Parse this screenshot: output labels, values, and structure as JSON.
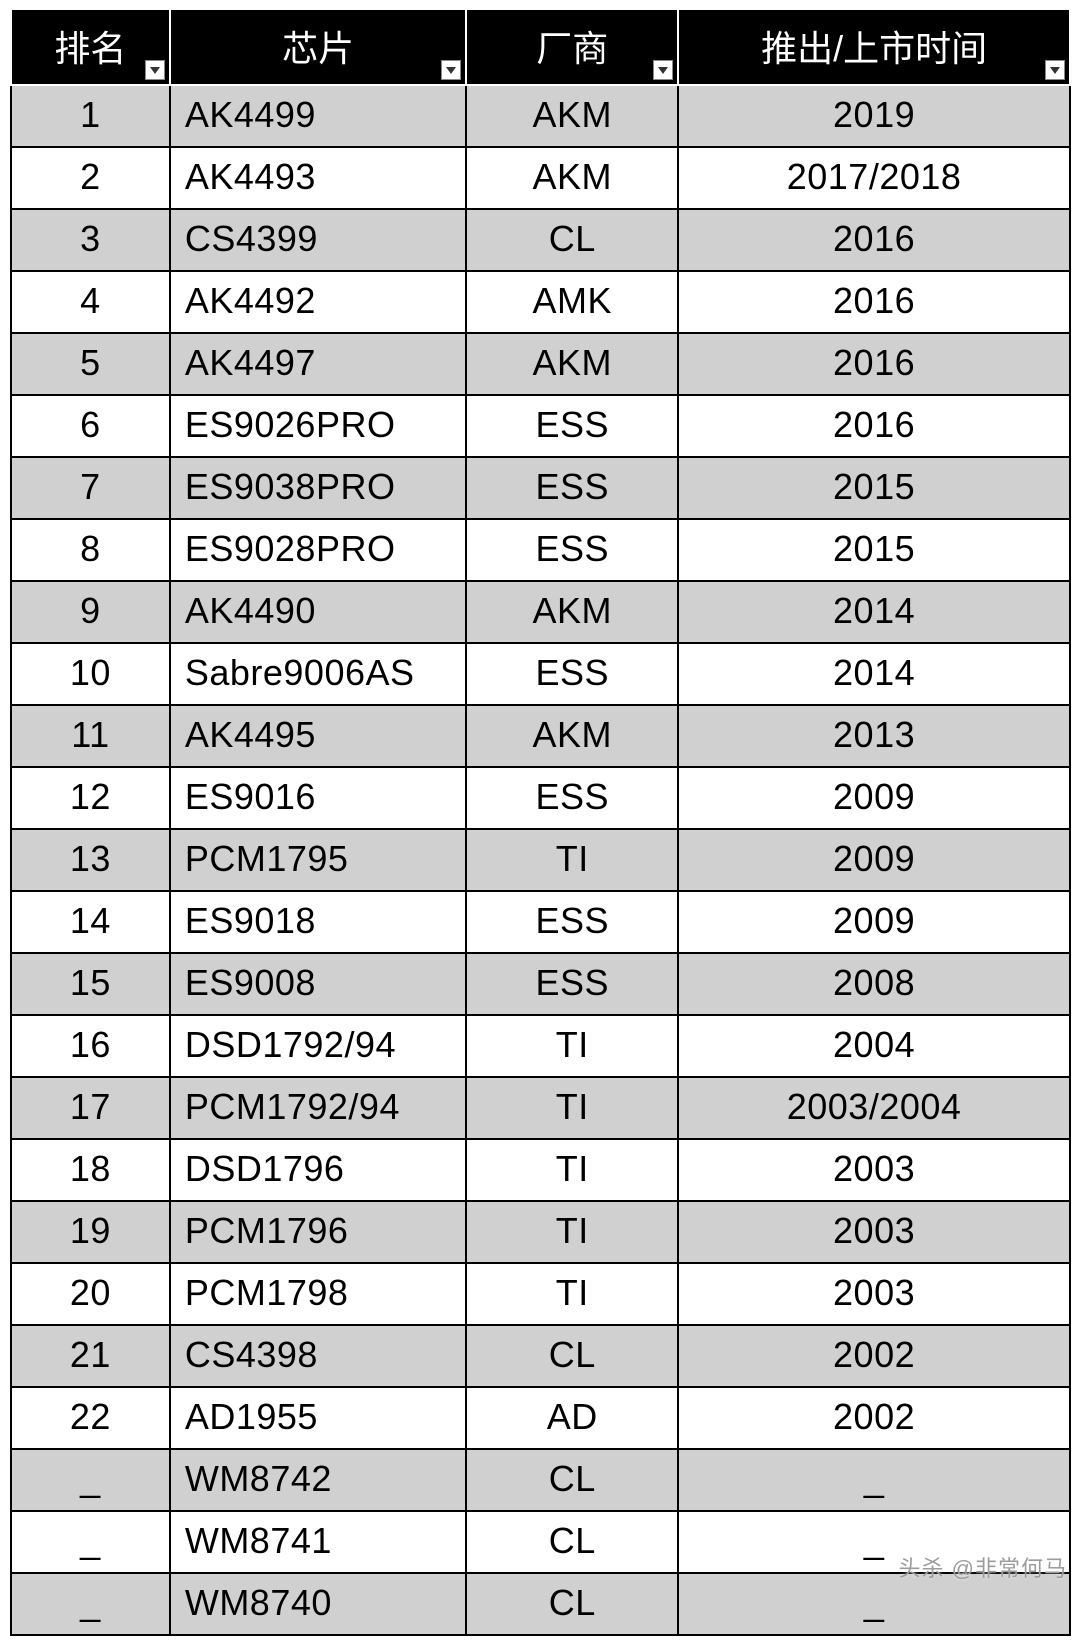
{
  "table": {
    "type": "table",
    "header_bg": "#000000",
    "header_fg": "#ffffff",
    "header_border": "#ffffff",
    "row_odd_bg": "#d0d0d0",
    "row_even_bg": "#ffffff",
    "cell_border": "#000000",
    "cell_fg": "#000000",
    "header_fontsize": 36,
    "cell_fontsize": 36,
    "columns": [
      {
        "key": "rank",
        "label": "排名",
        "width": "15%",
        "align": "center",
        "filter": true
      },
      {
        "key": "chip",
        "label": "芯片",
        "width": "28%",
        "align": "left",
        "filter": true
      },
      {
        "key": "maker",
        "label": "厂商",
        "width": "20%",
        "align": "center",
        "filter": true
      },
      {
        "key": "date",
        "label": "推出/上市时间",
        "width": "37%",
        "align": "center",
        "filter": true
      }
    ],
    "rows": [
      {
        "rank": "1",
        "chip": "AK4499",
        "maker": "AKM",
        "date": "2019"
      },
      {
        "rank": "2",
        "chip": "AK4493",
        "maker": "AKM",
        "date": "2017/2018"
      },
      {
        "rank": "3",
        "chip": "CS4399",
        "maker": "CL",
        "date": "2016"
      },
      {
        "rank": "4",
        "chip": "AK4492",
        "maker": "AMK",
        "date": "2016"
      },
      {
        "rank": "5",
        "chip": "AK4497",
        "maker": "AKM",
        "date": "2016"
      },
      {
        "rank": "6",
        "chip": "ES9026PRO",
        "maker": "ESS",
        "date": "2016"
      },
      {
        "rank": "7",
        "chip": "ES9038PRO",
        "maker": "ESS",
        "date": "2015"
      },
      {
        "rank": "8",
        "chip": "ES9028PRO",
        "maker": "ESS",
        "date": "2015"
      },
      {
        "rank": "9",
        "chip": "AK4490",
        "maker": "AKM",
        "date": "2014"
      },
      {
        "rank": "10",
        "chip": "Sabre9006AS",
        "maker": "ESS",
        "date": "2014"
      },
      {
        "rank": "11",
        "chip": "AK4495",
        "maker": "AKM",
        "date": "2013"
      },
      {
        "rank": "12",
        "chip": "ES9016",
        "maker": "ESS",
        "date": "2009"
      },
      {
        "rank": "13",
        "chip": "PCM1795",
        "maker": "TI",
        "date": "2009"
      },
      {
        "rank": "14",
        "chip": "ES9018",
        "maker": "ESS",
        "date": "2009"
      },
      {
        "rank": "15",
        "chip": "ES9008",
        "maker": "ESS",
        "date": "2008"
      },
      {
        "rank": "16",
        "chip": "DSD1792/94",
        "maker": "TI",
        "date": "2004"
      },
      {
        "rank": "17",
        "chip": "PCM1792/94",
        "maker": "TI",
        "date": "2003/2004"
      },
      {
        "rank": "18",
        "chip": "DSD1796",
        "maker": "TI",
        "date": "2003"
      },
      {
        "rank": "19",
        "chip": "PCM1796",
        "maker": "TI",
        "date": "2003"
      },
      {
        "rank": "20",
        "chip": "PCM1798",
        "maker": "TI",
        "date": "2003"
      },
      {
        "rank": "21",
        "chip": "CS4398",
        "maker": "CL",
        "date": "2002"
      },
      {
        "rank": "22",
        "chip": "AD1955",
        "maker": "AD",
        "date": "2002"
      },
      {
        "rank": "_",
        "chip": "WM8742",
        "maker": "CL",
        "date": "_"
      },
      {
        "rank": "_",
        "chip": "WM8741",
        "maker": "CL",
        "date": "_"
      },
      {
        "rank": "_",
        "chip": "WM8740",
        "maker": "CL",
        "date": "_"
      }
    ]
  },
  "watermark": "头杀 @非常何马"
}
